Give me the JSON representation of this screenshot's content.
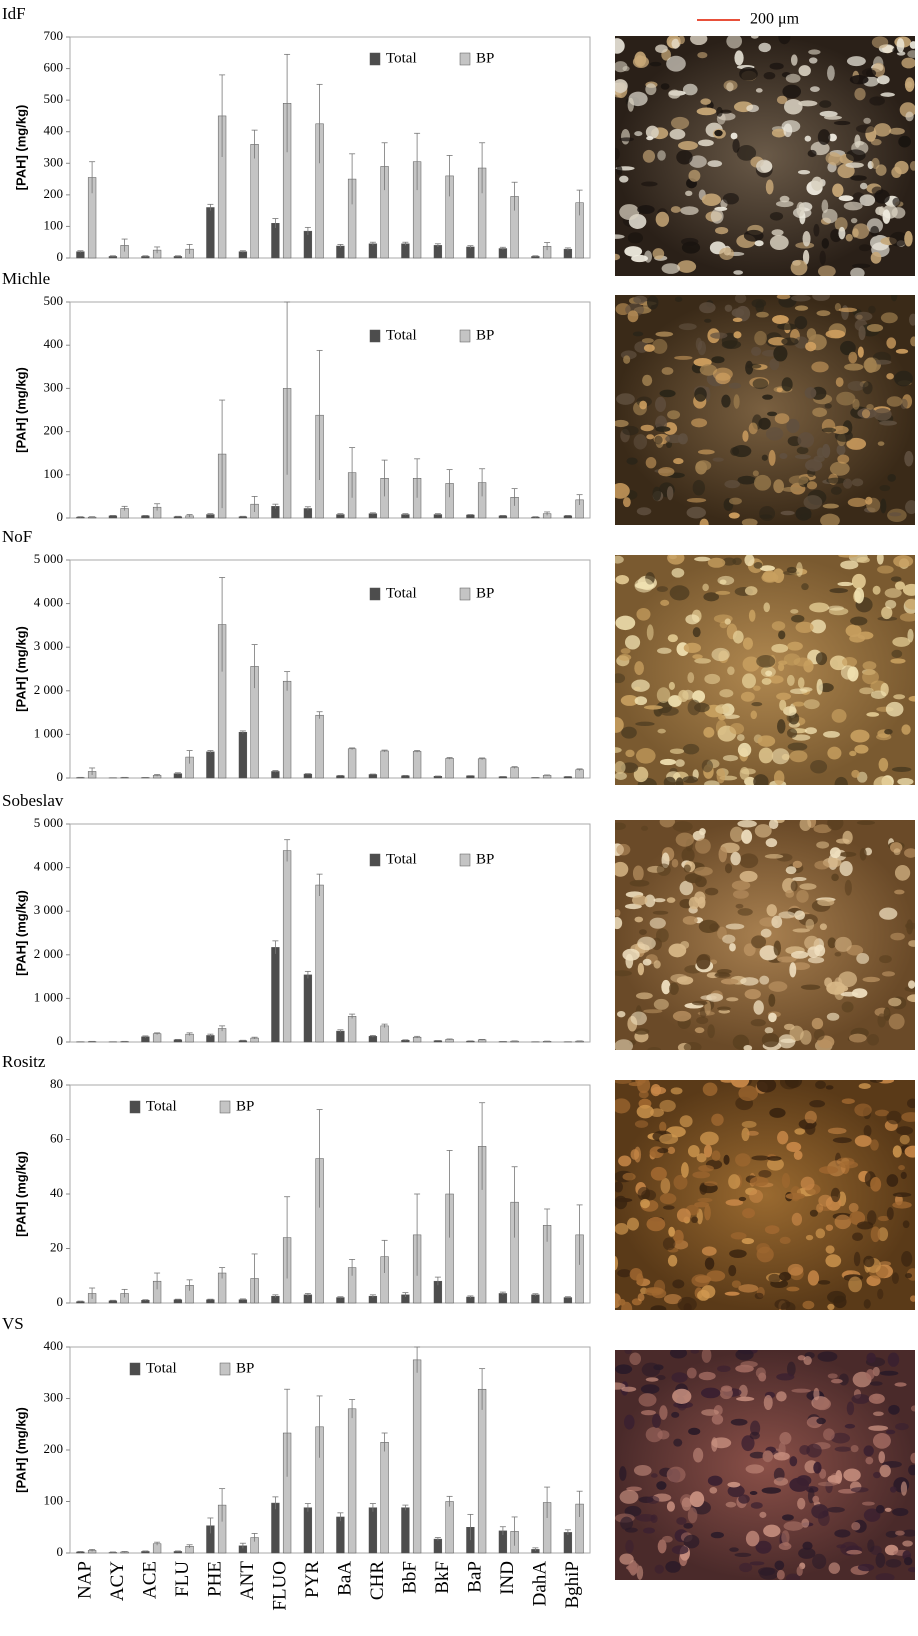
{
  "scale_bar": "200 μm",
  "chart_data": [
    {
      "type": "bar",
      "title": "IdF",
      "y_label": "[PAH] (mg/kg)",
      "ylim": [
        0,
        700
      ],
      "yticks": [
        0,
        100,
        200,
        300,
        400,
        500,
        600,
        700
      ],
      "legend": "upper center",
      "series": [
        {
          "name": "Total",
          "color": "#4d4d4d",
          "values": [
            20,
            5,
            5,
            5,
            160,
            20,
            110,
            85,
            38,
            45,
            45,
            40,
            35,
            30,
            5,
            28
          ],
          "errors": [
            3,
            2,
            2,
            2,
            10,
            3,
            15,
            12,
            5,
            5,
            5,
            5,
            4,
            4,
            2,
            4
          ]
        },
        {
          "name": "BP",
          "color": "#c4c4c4",
          "values": [
            255,
            40,
            25,
            28,
            450,
            360,
            490,
            425,
            250,
            290,
            305,
            260,
            285,
            195,
            37,
            175
          ],
          "errors": [
            50,
            20,
            10,
            15,
            130,
            45,
            155,
            125,
            80,
            75,
            90,
            65,
            80,
            45,
            12,
            40
          ]
        }
      ]
    },
    {
      "type": "bar",
      "title": "Michle",
      "y_label": "[PAH] (mg/kg)",
      "ylim": [
        0,
        500
      ],
      "yticks": [
        0,
        100,
        200,
        300,
        400,
        500
      ],
      "legend": "upper center",
      "series": [
        {
          "name": "Total",
          "color": "#4d4d4d",
          "values": [
            2,
            5,
            5,
            3,
            8,
            3,
            27,
            22,
            8,
            10,
            8,
            8,
            7,
            5,
            2,
            5
          ],
          "errors": [
            1,
            1,
            1,
            1,
            2,
            1,
            5,
            4,
            2,
            2,
            2,
            2,
            1,
            1,
            1,
            1
          ]
        },
        {
          "name": "BP",
          "color": "#c4c4c4",
          "values": [
            2,
            22,
            25,
            5,
            148,
            32,
            300,
            238,
            105,
            92,
            92,
            80,
            82,
            48,
            10,
            42
          ],
          "errors": [
            1,
            5,
            8,
            3,
            125,
            18,
            200,
            150,
            58,
            42,
            45,
            32,
            32,
            20,
            4,
            12
          ]
        }
      ]
    },
    {
      "type": "bar",
      "title": "NoF",
      "y_label": "[PAH] (mg/kg)",
      "ylim": [
        0,
        5000
      ],
      "yticks": [
        0,
        {
          "value": 1000,
          "label": "1 000"
        },
        {
          "value": 2000,
          "label": "2 000"
        },
        {
          "value": 3000,
          "label": "3 000"
        },
        {
          "value": 4000,
          "label": "4 000"
        },
        {
          "value": 5000,
          "label": "5 000"
        }
      ],
      "legend": "upper center",
      "series": [
        {
          "name": "Total",
          "color": "#4d4d4d",
          "values": [
            10,
            5,
            10,
            100,
            600,
            1050,
            150,
            90,
            50,
            80,
            50,
            40,
            50,
            30,
            10,
            30
          ],
          "errors": [
            5,
            2,
            3,
            20,
            30,
            30,
            20,
            10,
            10,
            10,
            10,
            5,
            5,
            5,
            2,
            5
          ]
        },
        {
          "name": "BP",
          "color": "#c4c4c4",
          "values": [
            150,
            10,
            60,
            480,
            3520,
            2560,
            2220,
            1440,
            670,
            620,
            610,
            450,
            440,
            240,
            60,
            190
          ],
          "errors": [
            80,
            5,
            20,
            150,
            1080,
            500,
            220,
            80,
            20,
            20,
            20,
            20,
            20,
            20,
            10,
            20
          ]
        }
      ]
    },
    {
      "type": "bar",
      "title": "Sobeslav",
      "y_label": "[PAH] (mg/kg)",
      "ylim": [
        0,
        5000
      ],
      "yticks": [
        0,
        {
          "value": 1000,
          "label": "1 000"
        },
        {
          "value": 2000,
          "label": "2 000"
        },
        {
          "value": 3000,
          "label": "3 000"
        },
        {
          "value": 4000,
          "label": "4 000"
        },
        {
          "value": 5000,
          "label": "5 000"
        }
      ],
      "legend": "upper center",
      "series": [
        {
          "name": "Total",
          "color": "#4d4d4d",
          "values": [
            5,
            5,
            120,
            50,
            150,
            30,
            2170,
            1540,
            250,
            130,
            40,
            30,
            20,
            10,
            5,
            5
          ],
          "errors": [
            2,
            2,
            20,
            10,
            30,
            10,
            150,
            80,
            30,
            20,
            10,
            5,
            5,
            2,
            2,
            2
          ]
        },
        {
          "name": "BP",
          "color": "#c4c4c4",
          "values": [
            10,
            10,
            190,
            180,
            310,
            90,
            4390,
            3600,
            590,
            370,
            110,
            60,
            50,
            20,
            15,
            20
          ],
          "errors": [
            5,
            5,
            20,
            30,
            60,
            20,
            250,
            250,
            50,
            40,
            20,
            10,
            10,
            5,
            5,
            5
          ]
        }
      ]
    },
    {
      "type": "bar",
      "title": "Rositz",
      "y_label": "[PAH] (mg/kg)",
      "ylim": [
        0,
        80
      ],
      "yticks": [
        0,
        20,
        40,
        60,
        80
      ],
      "legend": "upper left",
      "series": [
        {
          "name": "Total",
          "color": "#4d4d4d",
          "values": [
            0.5,
            0.8,
            1,
            1.2,
            1.2,
            1.2,
            2.5,
            3,
            2,
            2.5,
            3,
            8,
            2.2,
            3.5,
            3,
            2
          ],
          "errors": [
            0.2,
            0.2,
            0.2,
            0.2,
            0.2,
            0.3,
            0.5,
            0.5,
            0.3,
            0.5,
            0.8,
            1.5,
            0.4,
            0.5,
            0.4,
            0.3
          ]
        },
        {
          "name": "BP",
          "color": "#c4c4c4",
          "values": [
            3.5,
            3.5,
            8,
            6.5,
            11,
            9,
            24,
            53,
            13,
            17,
            25,
            40,
            57.5,
            37,
            28.5,
            25
          ],
          "errors": [
            2,
            1.5,
            3,
            2,
            2,
            9,
            15,
            18,
            3,
            6,
            15,
            16,
            16,
            13,
            6,
            11
          ]
        }
      ]
    },
    {
      "type": "bar",
      "title": "VS",
      "y_label": "[PAH] (mg/kg)",
      "ylim": [
        0,
        400
      ],
      "yticks": [
        0,
        100,
        200,
        300,
        400
      ],
      "legend": "upper left",
      "categories": [
        "NAP",
        "ACY",
        "ACE",
        "FLU",
        "PHE",
        "ANT",
        "FLUO",
        "PYR",
        "BaA",
        "CHR",
        "BbF",
        "BkF",
        "BaP",
        "IND",
        "DahA",
        "BghiP"
      ],
      "series": [
        {
          "name": "Total",
          "color": "#4d4d4d",
          "values": [
            2,
            1,
            3,
            3,
            53,
            14,
            97,
            88,
            70,
            88,
            88,
            27,
            50,
            43,
            7,
            40
          ],
          "errors": [
            1,
            1,
            1,
            1,
            15,
            5,
            12,
            8,
            8,
            8,
            5,
            3,
            25,
            8,
            3,
            5
          ]
        },
        {
          "name": "BP",
          "color": "#c4c4c4",
          "values": [
            5,
            2,
            18,
            13,
            93,
            30,
            233,
            245,
            280,
            215,
            375,
            100,
            318,
            42,
            98,
            95
          ],
          "errors": [
            2,
            1,
            3,
            3,
            32,
            8,
            85,
            60,
            18,
            18,
            25,
            10,
            40,
            28,
            30,
            25
          ]
        }
      ]
    }
  ]
}
